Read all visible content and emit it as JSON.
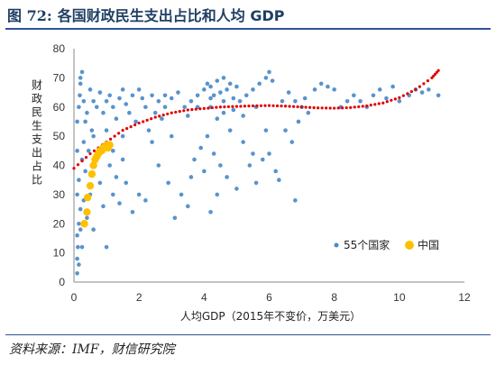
{
  "figure": {
    "number_label": "图 72:",
    "title": "各国财政民生支出占比和人均 GDP",
    "source": "资料来源：IMF，财信研究院"
  },
  "colors": {
    "title": "#1f3f64",
    "rule": "#2f5597",
    "countries": "#4a8ac9",
    "china": "#ffc000",
    "trend": "#e00000"
  },
  "chart_data": {
    "type": "scatter",
    "xlabel": "人均GDP（2015年不变价，万美元）",
    "ylabel": "财政民生支出占比",
    "xlim": [
      0,
      12
    ],
    "ylim": [
      0,
      80
    ],
    "x_ticks": [
      0,
      2,
      4,
      6,
      8,
      10,
      12
    ],
    "y_ticks": [
      0,
      10,
      20,
      30,
      40,
      50,
      60,
      70,
      80
    ],
    "grid": "none",
    "legend": {
      "position": "bottom-right",
      "items": [
        "55个国家",
        "中国"
      ]
    },
    "series": [
      {
        "name": "55个国家",
        "kind": "scatter",
        "points": [
          [
            0.1,
            3
          ],
          [
            0.1,
            8
          ],
          [
            0.12,
            12
          ],
          [
            0.1,
            16
          ],
          [
            0.15,
            20
          ],
          [
            0.2,
            25
          ],
          [
            0.1,
            30
          ],
          [
            0.15,
            35
          ],
          [
            0.1,
            45
          ],
          [
            0.1,
            55
          ],
          [
            0.15,
            60
          ],
          [
            0.18,
            64
          ],
          [
            0.2,
            70
          ],
          [
            0.25,
            72
          ],
          [
            0.2,
            68
          ],
          [
            0.3,
            62
          ],
          [
            0.35,
            55
          ],
          [
            0.3,
            48
          ],
          [
            0.25,
            42
          ],
          [
            0.4,
            58
          ],
          [
            0.5,
            66
          ],
          [
            0.6,
            62
          ],
          [
            0.55,
            52
          ],
          [
            0.45,
            45
          ],
          [
            0.7,
            60
          ],
          [
            0.8,
            65
          ],
          [
            0.9,
            58
          ],
          [
            0.6,
            50
          ],
          [
            0.35,
            38
          ],
          [
            0.3,
            28
          ],
          [
            0.2,
            18
          ],
          [
            0.25,
            12
          ],
          [
            0.15,
            6
          ],
          [
            0.4,
            22
          ],
          [
            0.5,
            30
          ],
          [
            1.0,
            62
          ],
          [
            1.1,
            64
          ],
          [
            1.2,
            60
          ],
          [
            1.3,
            56
          ],
          [
            1.0,
            52
          ],
          [
            1.4,
            63
          ],
          [
            1.5,
            66
          ],
          [
            1.6,
            61
          ],
          [
            1.2,
            45
          ],
          [
            1.5,
            50
          ],
          [
            1.7,
            58
          ],
          [
            1.8,
            64
          ],
          [
            2.0,
            66
          ],
          [
            2.1,
            63
          ],
          [
            2.2,
            60
          ],
          [
            1.9,
            55
          ],
          [
            2.3,
            52
          ],
          [
            1.1,
            40
          ],
          [
            1.3,
            36
          ],
          [
            1.6,
            34
          ],
          [
            2.0,
            30
          ],
          [
            1.4,
            27
          ],
          [
            0.9,
            26
          ],
          [
            1.8,
            24
          ],
          [
            2.5,
            58
          ],
          [
            2.6,
            62
          ],
          [
            2.8,
            64
          ],
          [
            3.0,
            63
          ],
          [
            3.2,
            65
          ],
          [
            2.7,
            56
          ],
          [
            2.4,
            48
          ],
          [
            3.0,
            50
          ],
          [
            3.4,
            60
          ],
          [
            3.6,
            62
          ],
          [
            3.8,
            64
          ],
          [
            4.0,
            66
          ],
          [
            4.1,
            68
          ],
          [
            4.2,
            67
          ],
          [
            4.3,
            64
          ],
          [
            4.4,
            69
          ],
          [
            4.5,
            65
          ],
          [
            4.6,
            70
          ],
          [
            4.7,
            66
          ],
          [
            4.8,
            68
          ],
          [
            4.9,
            63
          ],
          [
            5.0,
            67
          ],
          [
            4.2,
            60
          ],
          [
            4.4,
            56
          ],
          [
            4.6,
            58
          ],
          [
            4.8,
            52
          ],
          [
            4.1,
            50
          ],
          [
            3.9,
            46
          ],
          [
            4.3,
            44
          ],
          [
            4.5,
            40
          ],
          [
            4.0,
            38
          ],
          [
            3.7,
            42
          ],
          [
            4.7,
            36
          ],
          [
            5.1,
            62
          ],
          [
            5.3,
            64
          ],
          [
            5.5,
            66
          ],
          [
            5.7,
            68
          ],
          [
            5.9,
            70
          ],
          [
            6.0,
            72
          ],
          [
            6.1,
            69
          ],
          [
            5.2,
            48
          ],
          [
            5.5,
            44
          ],
          [
            5.8,
            42
          ],
          [
            6.2,
            38
          ],
          [
            5.6,
            34
          ],
          [
            5.0,
            32
          ],
          [
            6.4,
            62
          ],
          [
            6.6,
            65
          ],
          [
            6.8,
            62
          ],
          [
            7.0,
            60
          ],
          [
            6.9,
            55
          ],
          [
            6.5,
            52
          ],
          [
            6.7,
            48
          ],
          [
            7.2,
            58
          ],
          [
            7.4,
            66
          ],
          [
            7.6,
            68
          ],
          [
            7.8,
            67
          ],
          [
            8.0,
            66
          ],
          [
            8.2,
            60
          ],
          [
            8.4,
            62
          ],
          [
            8.6,
            64
          ],
          [
            8.8,
            62
          ],
          [
            9.0,
            60
          ],
          [
            9.2,
            64
          ],
          [
            9.4,
            66
          ],
          [
            9.6,
            63
          ],
          [
            9.8,
            67
          ],
          [
            10.0,
            62
          ],
          [
            10.3,
            64
          ],
          [
            10.5,
            66
          ],
          [
            10.7,
            65
          ],
          [
            10.9,
            66
          ],
          [
            11.2,
            64
          ],
          [
            3.3,
            30
          ],
          [
            3.5,
            26
          ],
          [
            2.9,
            34
          ],
          [
            4.2,
            24
          ],
          [
            6.0,
            44
          ],
          [
            6.3,
            35
          ],
          [
            6.8,
            28
          ],
          [
            2.2,
            28
          ],
          [
            3.1,
            22
          ],
          [
            1.0,
            12
          ],
          [
            0.6,
            18
          ],
          [
            0.8,
            34
          ],
          [
            1.2,
            30
          ],
          [
            1.5,
            42
          ],
          [
            2.6,
            40
          ],
          [
            3.6,
            36
          ],
          [
            4.4,
            30
          ],
          [
            5.4,
            40
          ],
          [
            5.9,
            52
          ],
          [
            7.1,
            63
          ],
          [
            4.6,
            62
          ],
          [
            4.2,
            63
          ],
          [
            3.8,
            60
          ],
          [
            2.4,
            64
          ],
          [
            2.8,
            60
          ],
          [
            3.5,
            57
          ],
          [
            4.9,
            59
          ],
          [
            5.2,
            57
          ],
          [
            5.6,
            60
          ]
        ]
      },
      {
        "name": "中国",
        "kind": "scatter",
        "points": [
          [
            0.32,
            20
          ],
          [
            0.4,
            24
          ],
          [
            0.42,
            29
          ],
          [
            0.5,
            33
          ],
          [
            0.55,
            37
          ],
          [
            0.6,
            40
          ],
          [
            0.65,
            42
          ],
          [
            0.7,
            43
          ],
          [
            0.75,
            44
          ],
          [
            0.8,
            45
          ],
          [
            0.85,
            45
          ],
          [
            0.9,
            46
          ],
          [
            0.95,
            46
          ],
          [
            1.0,
            47
          ],
          [
            1.05,
            46
          ],
          [
            1.1,
            47
          ]
        ]
      },
      {
        "name": "",
        "kind": "trend",
        "style": "dotted",
        "points": [
          [
            0.0,
            39
          ],
          [
            0.5,
            44
          ],
          [
            1.0,
            48
          ],
          [
            1.5,
            52
          ],
          [
            2.0,
            54.5
          ],
          [
            2.5,
            56.5
          ],
          [
            3.0,
            58
          ],
          [
            3.5,
            59
          ],
          [
            4.0,
            59.5
          ],
          [
            4.5,
            60
          ],
          [
            5.0,
            60.2
          ],
          [
            5.5,
            60.4
          ],
          [
            6.0,
            60.5
          ],
          [
            6.5,
            60.3
          ],
          [
            7.0,
            60.0
          ],
          [
            7.5,
            59.7
          ],
          [
            8.0,
            59.6
          ],
          [
            8.5,
            59.8
          ],
          [
            9.0,
            60.4
          ],
          [
            9.5,
            61.4
          ],
          [
            10.0,
            63.2
          ],
          [
            10.5,
            66
          ],
          [
            11.0,
            70
          ],
          [
            11.2,
            72.5
          ]
        ]
      }
    ]
  }
}
